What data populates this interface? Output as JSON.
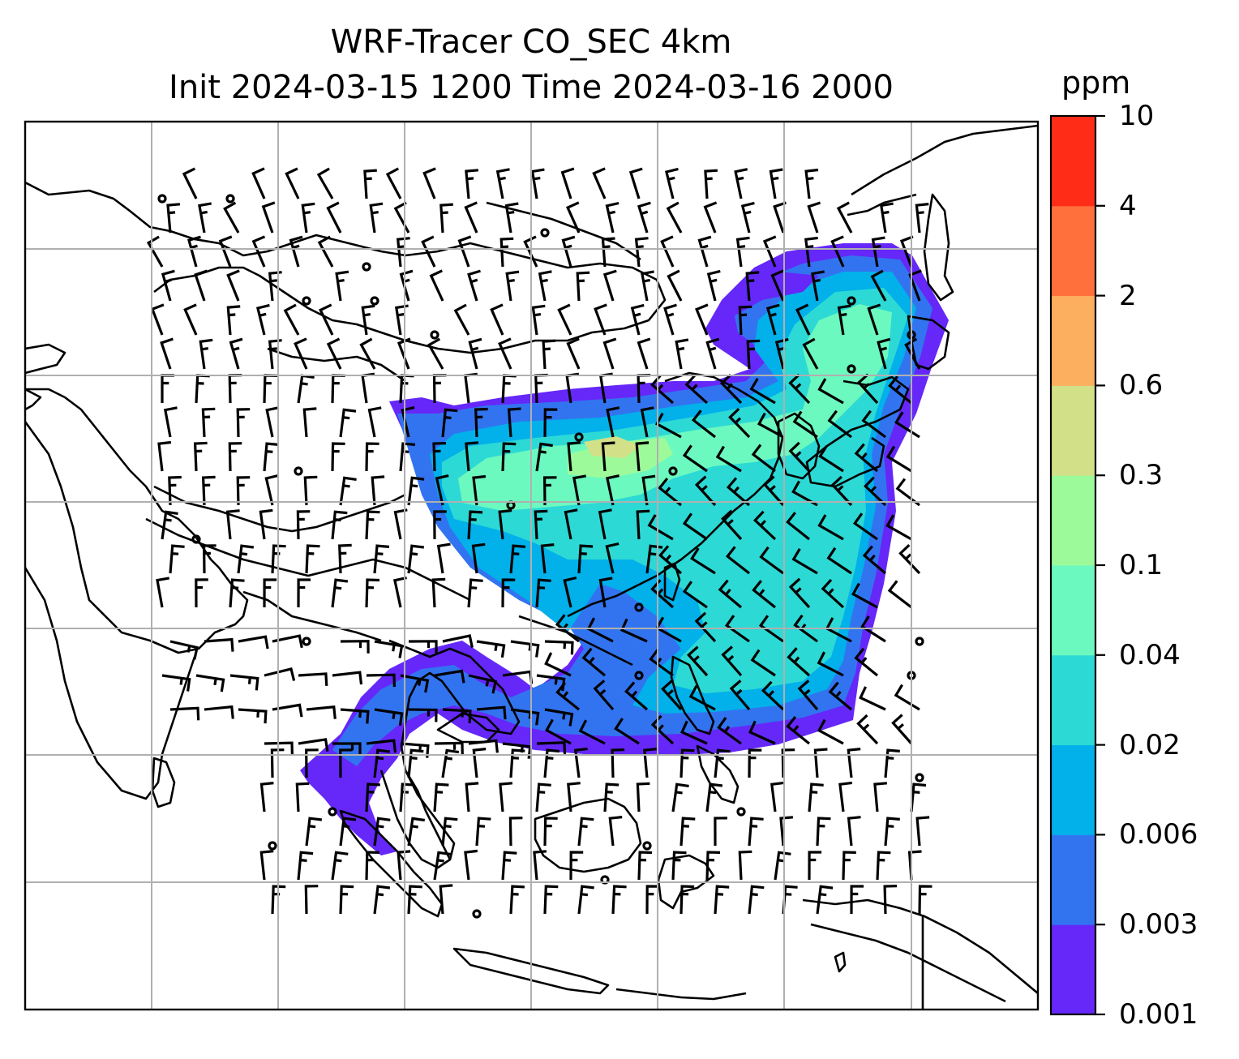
{
  "title": {
    "line1": "WRF-Tracer CO_SEC 4km",
    "line2": "Init 2024-03-15 1200 Time 2024-03-16 2000"
  },
  "colorbar": {
    "unit": "ppm",
    "levels": [
      "0.001",
      "0.003",
      "0.006",
      "0.02",
      "0.04",
      "0.1",
      "0.3",
      "0.6",
      "2",
      "4",
      "10"
    ],
    "colors": [
      "#6528f8",
      "#3274f0",
      "#02b0ea",
      "#2cd9d5",
      "#6cf9bf",
      "#9cfa9a",
      "#d2e188",
      "#fdaf60",
      "#ff703c",
      "#ff2d18"
    ]
  },
  "map": {
    "field": "CO_SEC tracer concentration",
    "gridlines": true,
    "wind_barbs": true,
    "colors": {
      "coastline": "#000000",
      "gridline": "#b0b0b0",
      "background": "#ffffff"
    }
  }
}
